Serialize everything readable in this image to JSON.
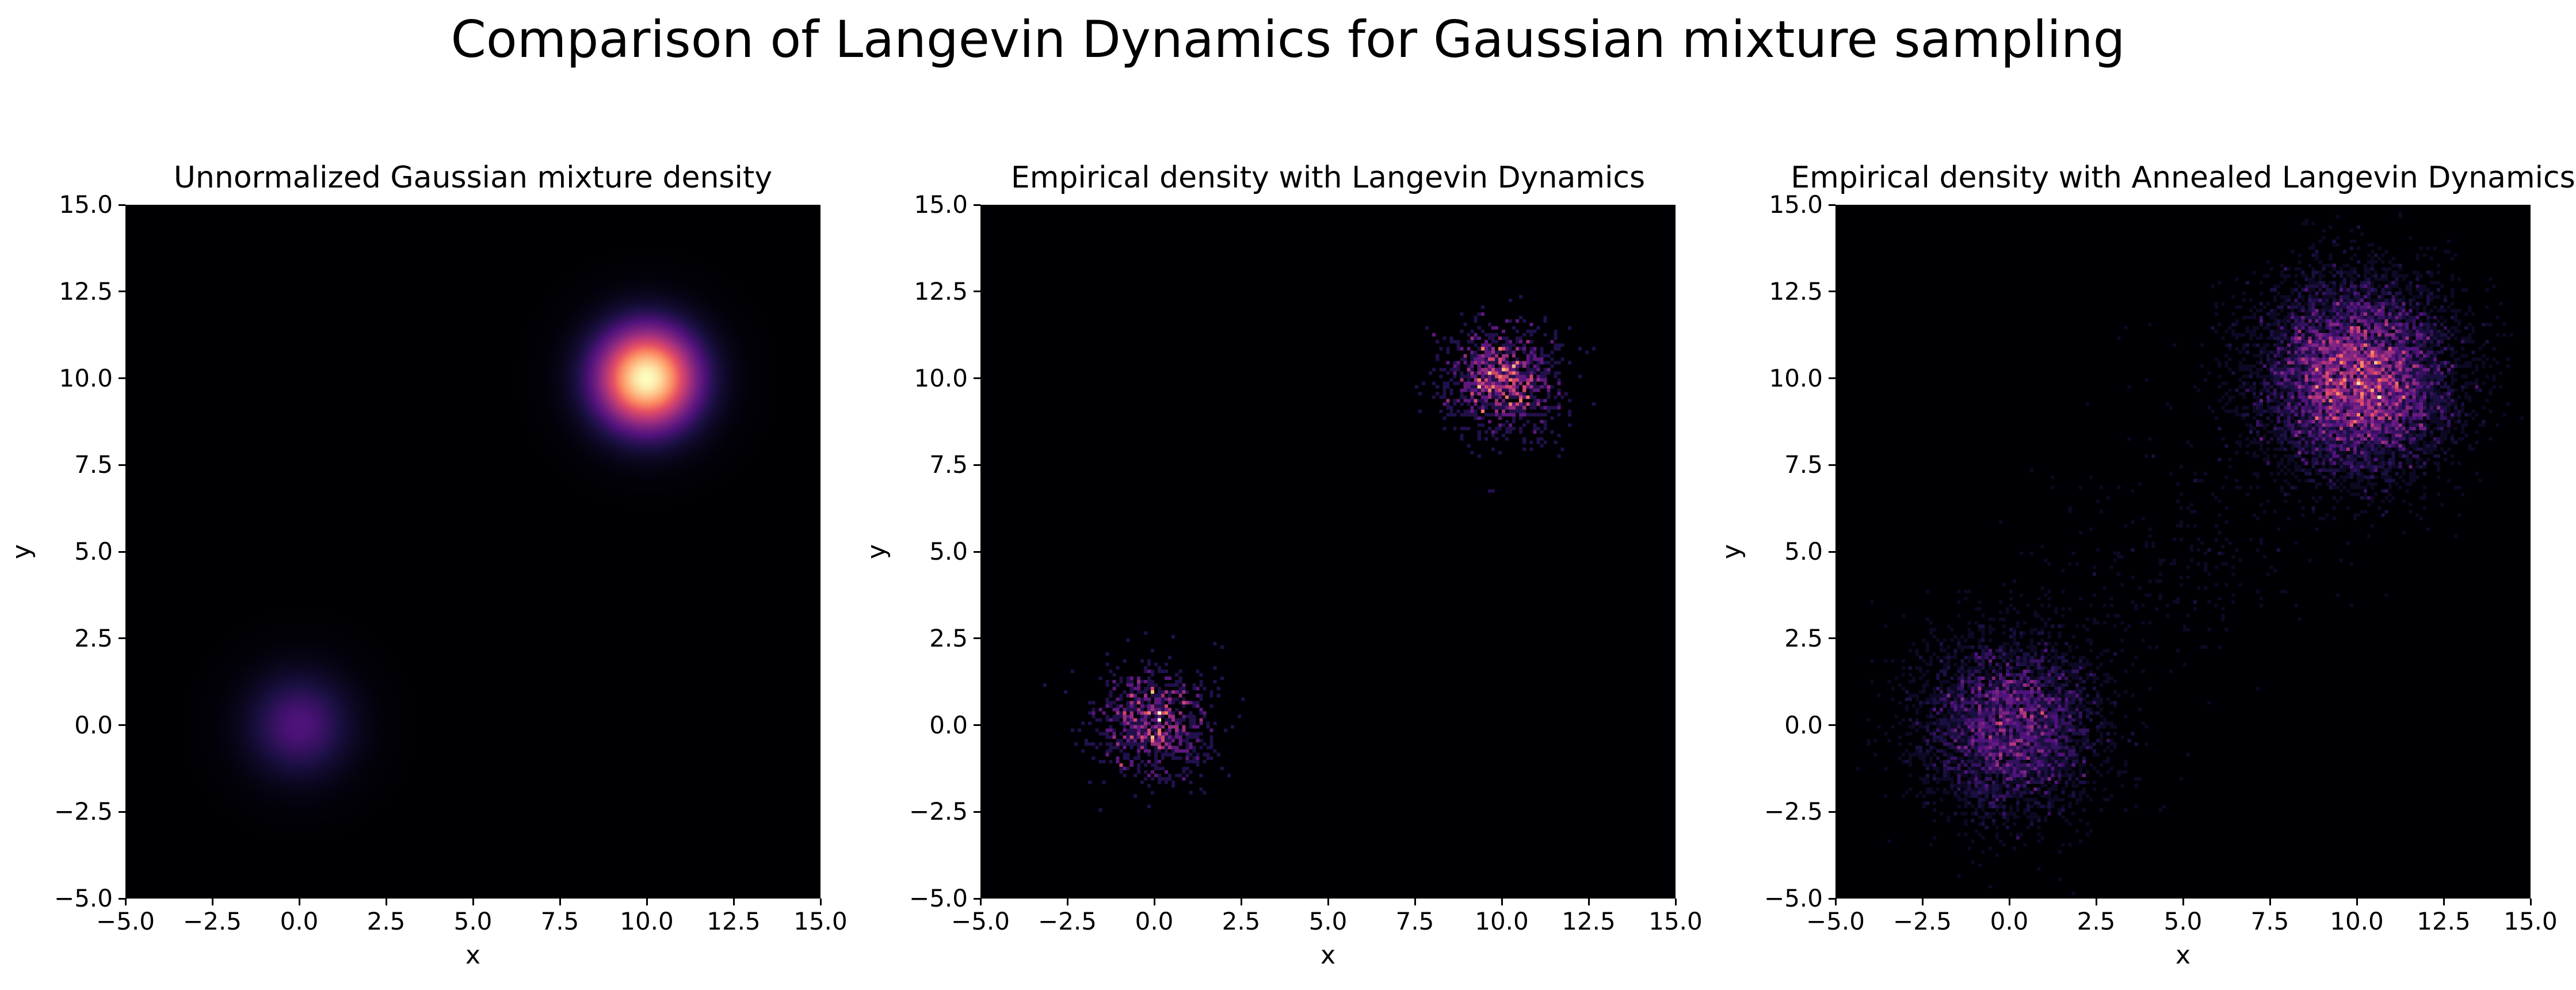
{
  "chart_data": {
    "title": "Comparison of Langevin Dynamics for Gaussian mixture sampling",
    "colormap": "magma",
    "colors": {
      "background": "#000004",
      "axes": "#000000",
      "page": "#ffffff"
    },
    "panels": [
      {
        "type": "heatmap",
        "kind": "density",
        "title": "Unnormalized Gaussian mixture density",
        "xlabel": "x",
        "ylabel": "y",
        "xlim": [
          -5.0,
          15.0
        ],
        "ylim": [
          -5.0,
          15.0
        ],
        "xticks": [
          "−5.0",
          "−2.5",
          "0.0",
          "2.5",
          "5.0",
          "7.5",
          "10.0",
          "12.5",
          "15.0"
        ],
        "yticks": [
          "−5.0",
          "−2.5",
          "0.0",
          "2.5",
          "5.0",
          "7.5",
          "10.0",
          "12.5",
          "15.0"
        ],
        "components": [
          {
            "mean": [
              0.0,
              0.0
            ],
            "std": 1.0,
            "weight": 0.2
          },
          {
            "mean": [
              10.0,
              10.0
            ],
            "std": 1.0,
            "weight": 0.8
          }
        ]
      },
      {
        "type": "heatmap",
        "kind": "histogram",
        "title": "Empirical density with Langevin Dynamics",
        "xlabel": "x",
        "ylabel": "y",
        "xlim": [
          -5.0,
          15.0
        ],
        "ylim": [
          -5.0,
          15.0
        ],
        "xticks": [
          "−5.0",
          "−2.5",
          "0.0",
          "2.5",
          "5.0",
          "7.5",
          "10.0",
          "12.5",
          "15.0"
        ],
        "yticks": [
          "−5.0",
          "−2.5",
          "0.0",
          "2.5",
          "5.0",
          "7.5",
          "10.0",
          "12.5",
          "15.0"
        ],
        "bins": 200,
        "components": [
          {
            "mean": [
              0.0,
              0.0
            ],
            "std": 0.8,
            "samples": 900
          },
          {
            "mean": [
              10.0,
              10.0
            ],
            "std": 0.8,
            "samples": 1100
          }
        ]
      },
      {
        "type": "heatmap",
        "kind": "histogram",
        "title": "Empirical density with Annealed Langevin Dynamics",
        "xlabel": "x",
        "ylabel": "y",
        "xlim": [
          -5.0,
          15.0
        ],
        "ylim": [
          -5.0,
          15.0
        ],
        "xticks": [
          "−5.0",
          "−2.5",
          "0.0",
          "2.5",
          "5.0",
          "7.5",
          "10.0",
          "12.5",
          "15.0"
        ],
        "yticks": [
          "−5.0",
          "−2.5",
          "0.0",
          "2.5",
          "5.0",
          "7.5",
          "10.0",
          "12.5",
          "15.0"
        ],
        "bins": 200,
        "components": [
          {
            "mean": [
              0.0,
              0.0
            ],
            "std": 1.3,
            "samples": 4500
          },
          {
            "mean": [
              10.0,
              10.0
            ],
            "std": 1.4,
            "samples": 9000
          },
          {
            "mean": [
              5.0,
              5.0
            ],
            "std": 2.0,
            "samples": 250
          }
        ]
      }
    ]
  }
}
